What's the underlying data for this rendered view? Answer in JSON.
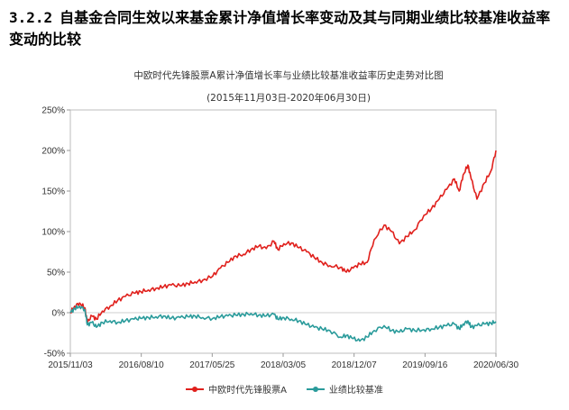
{
  "heading": {
    "number": "3.2.2",
    "text": "自基金合同生效以来基金累计净值增长率变动及其与同期业绩比较基准收益率变动的比较"
  },
  "chart_data": {
    "type": "line",
    "title": "中欧时代先锋股票A累计净值增长率与业绩比较基准收益率历史走势对比图",
    "subtitle": "(2015年11月03日-2020年06月30日)",
    "xlabel": "",
    "ylabel": "",
    "ylim": [
      -50,
      250
    ],
    "yticks": [
      -50,
      0,
      50,
      100,
      150,
      200,
      250
    ],
    "ytick_labels": [
      "-50%",
      "0%",
      "50%",
      "100%",
      "150%",
      "200%",
      "250%"
    ],
    "xlim": [
      "2015-11-03",
      "2020-06-30"
    ],
    "xtick_labels": [
      "2015/11/03",
      "2016/08/10",
      "2017/05/25",
      "2018/03/05",
      "2018/12/07",
      "2019/09/16",
      "2020/06/30"
    ],
    "grid": false,
    "legend_position": "bottom-center",
    "series": [
      {
        "name": "中欧时代先锋股票A",
        "color": "#e0201c",
        "x": [
          "2015-11-03",
          "2015-11-20",
          "2015-12-10",
          "2015-12-31",
          "2016-01-10",
          "2016-01-28",
          "2016-02-15",
          "2016-03-10",
          "2016-04-10",
          "2016-05-10",
          "2016-06-10",
          "2016-07-15",
          "2016-08-10",
          "2016-09-10",
          "2016-10-10",
          "2016-11-10",
          "2016-12-10",
          "2017-01-15",
          "2017-02-15",
          "2017-03-15",
          "2017-04-15",
          "2017-05-25",
          "2017-06-25",
          "2017-07-25",
          "2017-08-25",
          "2017-09-25",
          "2017-10-25",
          "2017-11-25",
          "2017-12-25",
          "2018-01-25",
          "2018-02-09",
          "2018-03-05",
          "2018-04-05",
          "2018-05-05",
          "2018-06-05",
          "2018-07-05",
          "2018-08-05",
          "2018-09-05",
          "2018-10-18",
          "2018-11-10",
          "2018-12-07",
          "2019-01-03",
          "2019-02-01",
          "2019-03-01",
          "2019-04-10",
          "2019-05-10",
          "2019-06-10",
          "2019-07-10",
          "2019-08-10",
          "2019-09-16",
          "2019-10-16",
          "2019-11-16",
          "2019-12-16",
          "2020-01-16",
          "2020-02-04",
          "2020-02-20",
          "2020-03-10",
          "2020-03-23",
          "2020-04-15",
          "2020-05-15",
          "2020-06-10",
          "2020-06-30"
        ],
        "y": [
          0,
          8,
          12,
          6,
          -12,
          -4,
          -8,
          2,
          8,
          15,
          20,
          24,
          26,
          28,
          30,
          32,
          34,
          33,
          36,
          38,
          40,
          45,
          55,
          62,
          70,
          72,
          78,
          82,
          79,
          88,
          78,
          85,
          86,
          80,
          75,
          68,
          62,
          58,
          56,
          50,
          55,
          60,
          62,
          90,
          108,
          100,
          85,
          94,
          102,
          120,
          128,
          140,
          152,
          165,
          150,
          170,
          182,
          165,
          140,
          160,
          175,
          200
        ]
      },
      {
        "name": "业绩比较基准",
        "color": "#2a9b9b",
        "x": [
          "2015-11-03",
          "2015-11-20",
          "2015-12-10",
          "2015-12-31",
          "2016-01-10",
          "2016-01-28",
          "2016-02-15",
          "2016-03-10",
          "2016-04-10",
          "2016-05-10",
          "2016-06-10",
          "2016-07-15",
          "2016-08-10",
          "2016-09-10",
          "2016-10-10",
          "2016-11-10",
          "2016-12-10",
          "2017-01-15",
          "2017-02-15",
          "2017-03-15",
          "2017-04-15",
          "2017-05-25",
          "2017-06-25",
          "2017-07-25",
          "2017-08-25",
          "2017-09-25",
          "2017-10-25",
          "2017-11-25",
          "2017-12-25",
          "2018-01-25",
          "2018-02-09",
          "2018-03-05",
          "2018-04-05",
          "2018-05-05",
          "2018-06-05",
          "2018-07-05",
          "2018-08-05",
          "2018-09-05",
          "2018-10-18",
          "2018-11-10",
          "2018-12-07",
          "2019-01-03",
          "2019-02-01",
          "2019-03-01",
          "2019-04-10",
          "2019-05-10",
          "2019-06-10",
          "2019-07-10",
          "2019-08-10",
          "2019-09-16",
          "2019-10-16",
          "2019-11-16",
          "2019-12-16",
          "2020-01-16",
          "2020-02-04",
          "2020-02-20",
          "2020-03-10",
          "2020-03-23",
          "2020-04-15",
          "2020-05-15",
          "2020-06-10",
          "2020-06-30"
        ],
        "y": [
          0,
          5,
          8,
          4,
          -15,
          -12,
          -18,
          -12,
          -10,
          -12,
          -10,
          -8,
          -7,
          -6,
          -5,
          -4,
          -7,
          -6,
          -5,
          -4,
          -6,
          -7,
          -5,
          -4,
          -3,
          -2,
          -1,
          -3,
          -4,
          -2,
          -8,
          -6,
          -8,
          -10,
          -15,
          -18,
          -20,
          -22,
          -30,
          -28,
          -32,
          -35,
          -30,
          -22,
          -16,
          -22,
          -24,
          -20,
          -22,
          -21,
          -20,
          -18,
          -16,
          -14,
          -20,
          -14,
          -10,
          -18,
          -16,
          -14,
          -13,
          -11
        ]
      }
    ]
  }
}
